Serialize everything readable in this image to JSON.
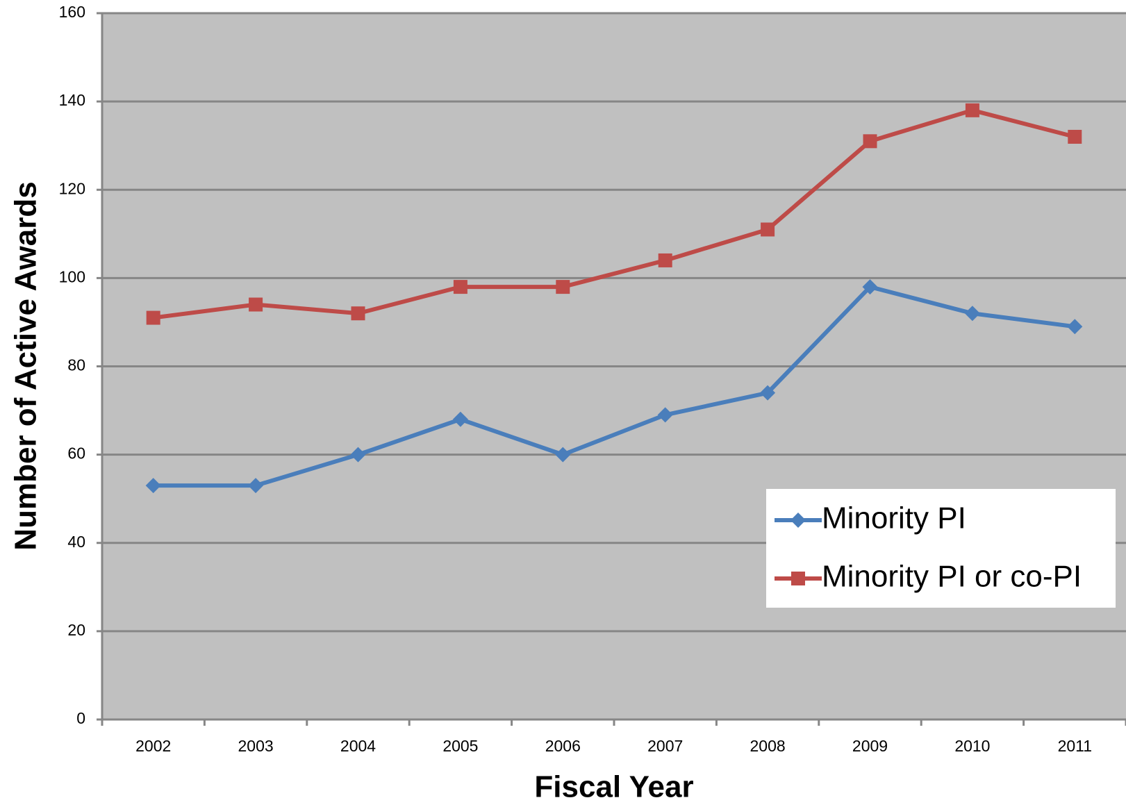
{
  "chart_data": {
    "type": "line",
    "x_label": "Fiscal Year",
    "y_label": "Number of Active Awards",
    "categories": [
      "2002",
      "2003",
      "2004",
      "2005",
      "2006",
      "2007",
      "2008",
      "2009",
      "2010",
      "2011"
    ],
    "series": [
      {
        "name": "Minority PI",
        "color": "#4a7ebb",
        "marker": "diamond",
        "values": [
          53,
          53,
          60,
          68,
          60,
          69,
          74,
          98,
          92,
          89
        ]
      },
      {
        "name": "Minority PI or co-PI",
        "color": "#be4b48",
        "marker": "square",
        "values": [
          91,
          94,
          92,
          98,
          98,
          104,
          111,
          131,
          138,
          132
        ]
      }
    ],
    "ylim": [
      0,
      160
    ],
    "yticks": [
      0,
      20,
      40,
      60,
      80,
      100,
      120,
      140,
      160
    ],
    "grid": true,
    "legend_position": "right"
  }
}
